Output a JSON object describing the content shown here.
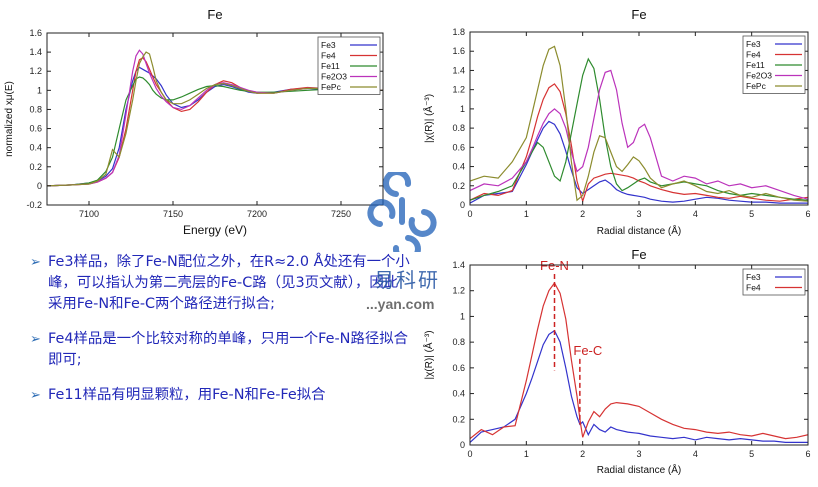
{
  "notes": [
    "Fe3样品，除了Fe-N配位之外，在R≈2.0 Å处还有一个小峰，可以指认为第二壳层的Fe-C路（见3页文献），因此采用Fe-N和Fe-C两个路径进行拟合;",
    "Fe4样品是一个比较对称的单峰，只用一个Fe-N路径拟合即可;",
    "Fe11样品有明显颗粒，用Fe-N和Fe-Fe拟合"
  ],
  "watermark": {
    "name": "易科研",
    "url": "...yan.com"
  },
  "chart_data": [
    {
      "type": "line",
      "title": "Fe",
      "xlabel": "Energy    (eV)",
      "ylabel": "normalized xμ(E)",
      "xlim": [
        7075,
        7275
      ],
      "ylim": [
        -0.2,
        1.6
      ],
      "xticks": [
        7100,
        7150,
        7200,
        7250
      ],
      "yticks": [
        -0.2,
        0,
        0.2,
        0.4,
        0.6,
        0.8,
        1,
        1.2,
        1.4,
        1.6
      ],
      "grid": false,
      "legend_position": "top-right",
      "x": [
        7075,
        7090,
        7100,
        7105,
        7110,
        7114,
        7118,
        7122,
        7126,
        7128,
        7130,
        7132,
        7134,
        7136,
        7138,
        7140,
        7143,
        7146,
        7150,
        7155,
        7160,
        7165,
        7170,
        7175,
        7180,
        7185,
        7190,
        7195,
        7200,
        7210,
        7220,
        7230,
        7240,
        7250,
        7260,
        7275
      ],
      "series": [
        {
          "name": "Fe3",
          "color": "#3333cc",
          "values": [
            0,
            0.01,
            0.03,
            0.05,
            0.1,
            0.18,
            0.4,
            0.8,
            1.1,
            1.2,
            1.24,
            1.22,
            1.2,
            1.18,
            1.15,
            1.12,
            1.05,
            0.95,
            0.86,
            0.82,
            0.84,
            0.9,
            0.98,
            1.04,
            1.06,
            1.04,
            1.01,
            0.98,
            0.97,
            0.98,
            1.01,
            1.02,
            1.01,
            0.99,
            1.0,
            1.0
          ]
        },
        {
          "name": "Fe4",
          "color": "#d63333",
          "values": [
            0,
            0.01,
            0.02,
            0.04,
            0.08,
            0.14,
            0.3,
            0.6,
            1.0,
            1.2,
            1.32,
            1.34,
            1.3,
            1.22,
            1.14,
            1.06,
            0.98,
            0.9,
            0.82,
            0.78,
            0.8,
            0.88,
            0.98,
            1.06,
            1.1,
            1.08,
            1.03,
            0.99,
            0.97,
            0.97,
            1.01,
            1.03,
            1.02,
            0.99,
            1.0,
            1.0
          ]
        },
        {
          "name": "Fe11",
          "color": "#2e8b2e",
          "values": [
            0,
            0.01,
            0.03,
            0.06,
            0.15,
            0.3,
            0.6,
            0.9,
            1.05,
            1.12,
            1.14,
            1.13,
            1.1,
            1.06,
            1.0,
            0.96,
            0.92,
            0.9,
            0.9,
            0.93,
            0.97,
            1.01,
            1.04,
            1.05,
            1.04,
            1.02,
            1.0,
            0.99,
            0.98,
            0.98,
            0.99,
            1.0,
            1.01,
            1.0,
            1.0,
            1.0
          ]
        },
        {
          "name": "Fe2O3",
          "color": "#bb33bb",
          "values": [
            0,
            0.01,
            0.02,
            0.04,
            0.08,
            0.14,
            0.32,
            0.75,
            1.2,
            1.36,
            1.42,
            1.38,
            1.28,
            1.18,
            1.1,
            1.02,
            0.94,
            0.88,
            0.82,
            0.8,
            0.84,
            0.92,
            1.0,
            1.06,
            1.08,
            1.06,
            1.03,
            1.0,
            0.98,
            0.97,
            1.0,
            1.02,
            1.02,
            1.0,
            1.0,
            1.0
          ]
        },
        {
          "name": "FePc",
          "color": "#8c8c2e",
          "values": [
            0,
            0.01,
            0.02,
            0.05,
            0.12,
            0.38,
            0.3,
            0.55,
            0.9,
            1.1,
            1.28,
            1.35,
            1.4,
            1.38,
            1.25,
            1.1,
            0.98,
            0.9,
            0.86,
            0.86,
            0.9,
            0.96,
            1.02,
            1.06,
            1.07,
            1.05,
            1.02,
            0.99,
            0.97,
            0.97,
            1.0,
            1.02,
            1.02,
            1.0,
            1.0,
            1.0
          ]
        }
      ]
    },
    {
      "type": "line",
      "title": "Fe",
      "xlabel": "Radial distance    (Å)",
      "ylabel": "|χ(R)|    (Å⁻³)",
      "xlim": [
        0,
        6
      ],
      "ylim": [
        0,
        1.8
      ],
      "xticks": [
        0,
        1,
        2,
        3,
        4,
        5,
        6
      ],
      "yticks": [
        0,
        0.2,
        0.4,
        0.6,
        0.8,
        1,
        1.2,
        1.4,
        1.6,
        1.8
      ],
      "grid": false,
      "legend_position": "top-right",
      "x": [
        0,
        0.25,
        0.5,
        0.75,
        1.0,
        1.1,
        1.2,
        1.3,
        1.4,
        1.5,
        1.6,
        1.7,
        1.8,
        1.9,
        2.0,
        2.1,
        2.2,
        2.3,
        2.4,
        2.5,
        2.6,
        2.7,
        2.8,
        2.9,
        3.0,
        3.1,
        3.2,
        3.4,
        3.6,
        3.8,
        4.0,
        4.2,
        4.4,
        4.6,
        4.8,
        5.0,
        5.25,
        5.5,
        5.75,
        6.0
      ],
      "series": [
        {
          "name": "Fe3",
          "color": "#3333cc",
          "values": [
            0.02,
            0.1,
            0.12,
            0.14,
            0.42,
            0.55,
            0.68,
            0.8,
            0.87,
            0.84,
            0.74,
            0.56,
            0.36,
            0.18,
            0.12,
            0.16,
            0.2,
            0.24,
            0.26,
            0.22,
            0.16,
            0.13,
            0.11,
            0.1,
            0.09,
            0.08,
            0.06,
            0.04,
            0.03,
            0.04,
            0.06,
            0.08,
            0.07,
            0.05,
            0.04,
            0.03,
            0.03,
            0.02,
            0.02,
            0.02
          ]
        },
        {
          "name": "Fe4",
          "color": "#d63333",
          "values": [
            0.05,
            0.12,
            0.1,
            0.15,
            0.5,
            0.7,
            0.92,
            1.1,
            1.22,
            1.26,
            1.18,
            0.95,
            0.62,
            0.25,
            0.04,
            0.22,
            0.28,
            0.3,
            0.32,
            0.33,
            0.32,
            0.31,
            0.3,
            0.28,
            0.25,
            0.23,
            0.2,
            0.16,
            0.13,
            0.11,
            0.12,
            0.1,
            0.08,
            0.07,
            0.09,
            0.07,
            0.05,
            0.04,
            0.06,
            0.08
          ]
        },
        {
          "name": "Fe11",
          "color": "#2e8b2e",
          "values": [
            0.05,
            0.1,
            0.14,
            0.2,
            0.45,
            0.55,
            0.65,
            0.6,
            0.45,
            0.3,
            0.25,
            0.45,
            0.75,
            1.05,
            1.35,
            1.52,
            1.42,
            1.1,
            0.7,
            0.4,
            0.22,
            0.15,
            0.18,
            0.22,
            0.26,
            0.28,
            0.24,
            0.2,
            0.22,
            0.24,
            0.22,
            0.2,
            0.15,
            0.12,
            0.1,
            0.12,
            0.1,
            0.08,
            0.06,
            0.05
          ]
        },
        {
          "name": "Fe2O3",
          "color": "#bb33bb",
          "values": [
            0.15,
            0.22,
            0.2,
            0.28,
            0.45,
            0.58,
            0.72,
            0.85,
            0.95,
            1.0,
            0.95,
            0.8,
            0.55,
            0.35,
            0.4,
            0.6,
            0.9,
            1.2,
            1.38,
            1.4,
            1.2,
            0.85,
            0.6,
            0.65,
            0.8,
            0.84,
            0.7,
            0.3,
            0.25,
            0.3,
            0.28,
            0.22,
            0.25,
            0.2,
            0.22,
            0.18,
            0.2,
            0.15,
            0.1,
            0.06
          ]
        },
        {
          "name": "FePc",
          "color": "#8c8c2e",
          "values": [
            0.25,
            0.3,
            0.28,
            0.45,
            0.7,
            0.95,
            1.2,
            1.45,
            1.62,
            1.65,
            1.45,
            1.0,
            0.45,
            0.05,
            0.1,
            0.3,
            0.55,
            0.72,
            0.7,
            0.55,
            0.4,
            0.35,
            0.42,
            0.5,
            0.46,
            0.38,
            0.28,
            0.18,
            0.22,
            0.25,
            0.2,
            0.14,
            0.12,
            0.15,
            0.1,
            0.08,
            0.12,
            0.08,
            0.05,
            0.04
          ]
        }
      ]
    },
    {
      "type": "line",
      "title": "Fe",
      "xlabel": "Radial distance    (Å)",
      "ylabel": "|χ(R)|    (Å⁻³)",
      "xlim": [
        0,
        6
      ],
      "ylim": [
        0,
        1.4
      ],
      "xticks": [
        0,
        1,
        2,
        3,
        4,
        5,
        6
      ],
      "yticks": [
        0,
        0.2,
        0.4,
        0.6,
        0.8,
        1,
        1.2,
        1.4
      ],
      "grid": false,
      "legend_position": "top-right",
      "annotations": [
        {
          "text": "Fe-N",
          "x": 1.5,
          "y_top": 1.33,
          "y_bottom": 0.58,
          "color": "#cc2222"
        },
        {
          "text": "Fe-C",
          "x": 1.95,
          "y_top": 0.67,
          "y_bottom": 0.16,
          "color": "#cc2222"
        }
      ],
      "x": [
        0,
        0.2,
        0.4,
        0.6,
        0.8,
        1.0,
        1.1,
        1.2,
        1.3,
        1.4,
        1.5,
        1.6,
        1.7,
        1.8,
        1.9,
        1.95,
        2.0,
        2.1,
        2.2,
        2.3,
        2.4,
        2.5,
        2.6,
        2.8,
        3.0,
        3.2,
        3.4,
        3.6,
        3.8,
        4.0,
        4.2,
        4.4,
        4.6,
        4.8,
        5.0,
        5.2,
        5.4,
        5.6,
        5.8,
        6.0
      ],
      "series": [
        {
          "name": "Fe3",
          "color": "#3333cc",
          "values": [
            0.02,
            0.1,
            0.12,
            0.14,
            0.2,
            0.4,
            0.52,
            0.65,
            0.78,
            0.86,
            0.89,
            0.8,
            0.6,
            0.38,
            0.22,
            0.16,
            0.18,
            0.08,
            0.16,
            0.12,
            0.1,
            0.14,
            0.12,
            0.1,
            0.09,
            0.07,
            0.06,
            0.05,
            0.06,
            0.04,
            0.06,
            0.05,
            0.04,
            0.05,
            0.04,
            0.03,
            0.03,
            0.02,
            0.02,
            0.02
          ]
        },
        {
          "name": "Fe4",
          "color": "#d63333",
          "values": [
            0.05,
            0.12,
            0.08,
            0.14,
            0.15,
            0.5,
            0.7,
            0.9,
            1.08,
            1.2,
            1.26,
            1.18,
            0.98,
            0.66,
            0.38,
            0.2,
            0.06,
            0.18,
            0.26,
            0.22,
            0.28,
            0.32,
            0.33,
            0.32,
            0.3,
            0.25,
            0.2,
            0.16,
            0.13,
            0.12,
            0.1,
            0.09,
            0.1,
            0.08,
            0.07,
            0.09,
            0.07,
            0.05,
            0.06,
            0.08
          ]
        }
      ]
    }
  ]
}
